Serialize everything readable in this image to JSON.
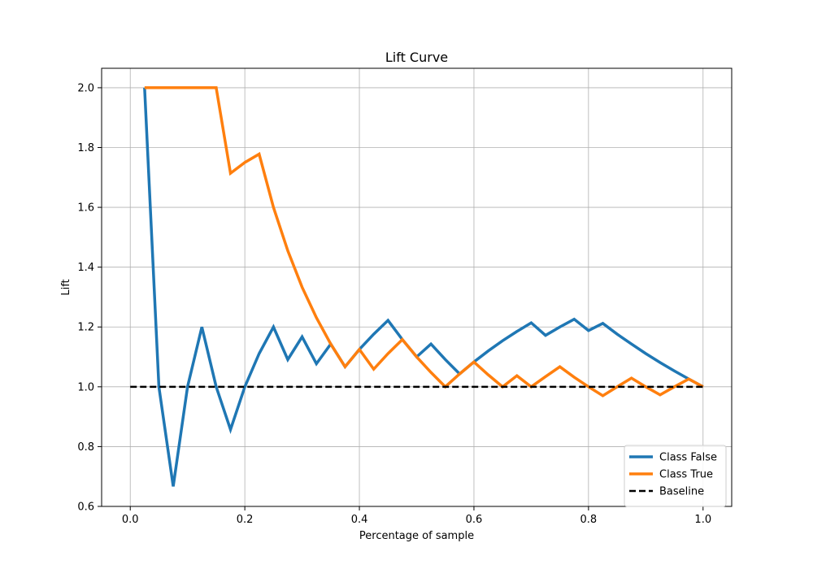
{
  "chart_data": {
    "type": "line",
    "title": "Lift Curve",
    "xlabel": "Percentage of sample",
    "ylabel": "Lift",
    "xlim": [
      -0.05,
      1.05
    ],
    "ylim": [
      0.6,
      2.065
    ],
    "xticks": [
      0.0,
      0.2,
      0.4,
      0.6,
      0.8,
      1.0
    ],
    "xtick_labels": [
      "0.0",
      "0.2",
      "0.4",
      "0.6",
      "0.8",
      "1.0"
    ],
    "yticks": [
      0.6,
      0.8,
      1.0,
      1.2,
      1.4,
      1.6,
      1.8,
      2.0
    ],
    "ytick_labels": [
      "0.6",
      "0.8",
      "1.0",
      "1.2",
      "1.4",
      "1.6",
      "1.8",
      "2.0"
    ],
    "grid": true,
    "legend_position": "bottom-right",
    "series": [
      {
        "name": "Class False",
        "color": "#1f77b4",
        "style": "solid",
        "x": [
          0.025,
          0.05,
          0.075,
          0.1,
          0.125,
          0.15,
          0.175,
          0.2,
          0.225,
          0.25,
          0.275,
          0.3,
          0.325,
          0.35,
          0.375,
          0.4,
          0.425,
          0.45,
          0.475,
          0.5,
          0.525,
          0.55,
          0.575,
          0.6,
          0.625,
          0.65,
          0.675,
          0.7,
          0.725,
          0.75,
          0.775,
          0.8,
          0.825,
          0.85,
          0.875,
          0.9,
          0.925,
          0.95,
          0.975,
          1.0
        ],
        "y": [
          2.0,
          1.0,
          0.667,
          1.0,
          1.2,
          1.0,
          0.857,
          1.0,
          1.111,
          1.2,
          1.091,
          1.167,
          1.077,
          1.143,
          1.067,
          1.125,
          1.176,
          1.222,
          1.158,
          1.1,
          1.143,
          1.091,
          1.043,
          1.083,
          1.12,
          1.154,
          1.185,
          1.214,
          1.172,
          1.2,
          1.226,
          1.188,
          1.212,
          1.176,
          1.143,
          1.111,
          1.081,
          1.053,
          1.026,
          1.0
        ]
      },
      {
        "name": "Class True",
        "color": "#ff7f0e",
        "style": "solid",
        "x": [
          0.025,
          0.05,
          0.075,
          0.1,
          0.125,
          0.15,
          0.175,
          0.2,
          0.225,
          0.25,
          0.275,
          0.3,
          0.325,
          0.35,
          0.375,
          0.4,
          0.425,
          0.45,
          0.475,
          0.5,
          0.525,
          0.55,
          0.575,
          0.6,
          0.625,
          0.65,
          0.675,
          0.7,
          0.725,
          0.75,
          0.775,
          0.8,
          0.825,
          0.85,
          0.875,
          0.9,
          0.925,
          0.95,
          0.975,
          1.0
        ],
        "y": [
          2.0,
          2.0,
          2.0,
          2.0,
          2.0,
          2.0,
          1.714,
          1.75,
          1.778,
          1.6,
          1.455,
          1.333,
          1.231,
          1.143,
          1.067,
          1.125,
          1.059,
          1.111,
          1.158,
          1.1,
          1.048,
          1.0,
          1.043,
          1.083,
          1.04,
          1.0,
          1.037,
          1.0,
          1.034,
          1.067,
          1.032,
          1.0,
          0.97,
          1.0,
          1.029,
          1.0,
          0.973,
          1.0,
          1.026,
          1.0
        ]
      },
      {
        "name": "Baseline",
        "color": "#000000",
        "style": "dashed",
        "x": [
          0.0,
          1.0
        ],
        "y": [
          1.0,
          1.0
        ]
      }
    ]
  }
}
